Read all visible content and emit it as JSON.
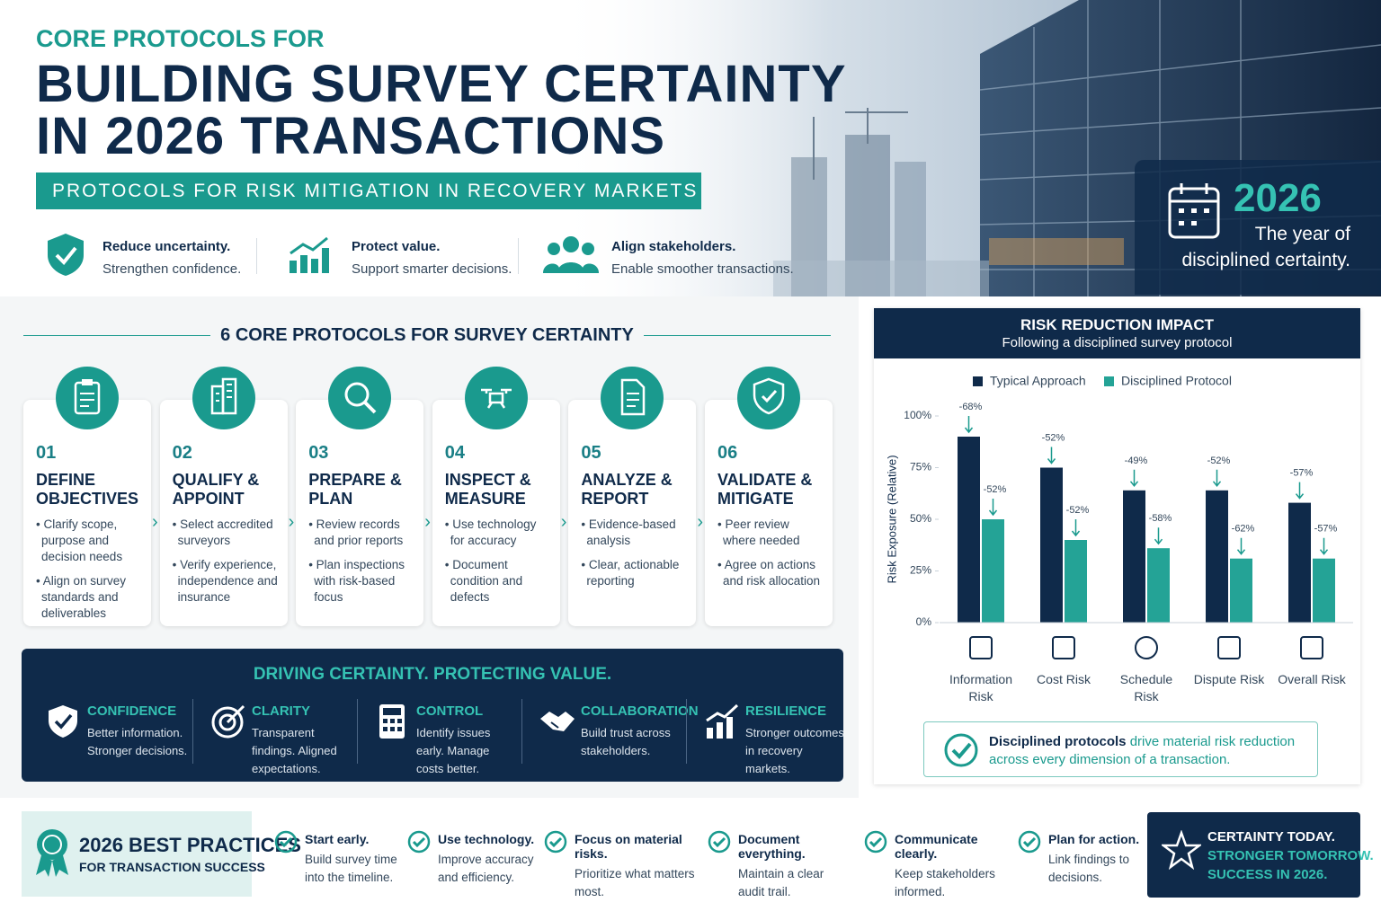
{
  "header": {
    "kicker": "CORE PROTOCOLS FOR",
    "title_lines": [
      "BUILDING SURVEY CERTAINTY",
      "IN 2026 TRANSACTIONS"
    ],
    "subtitle": "PROTOCOLS FOR RISK MITIGATION IN RECOVERY MARKETS"
  },
  "benefits": [
    {
      "title": "Reduce uncertainty.",
      "text": "Strengthen confidence."
    },
    {
      "title": "Protect value.",
      "text": "Support smarter decisions."
    },
    {
      "title": "Align stakeholders.",
      "text": "Enable smoother transactions."
    }
  ],
  "year_badge": {
    "year": "2026",
    "text": "The year of disciplined certainty."
  },
  "protocols": {
    "title": "6 CORE PROTOCOLS FOR SURVEY CERTAINTY",
    "steps": [
      {
        "number": "01",
        "title": "DEFINE OBJECTIVES",
        "bullets": [
          "Clarify scope, purpose and decision needs",
          "Align on survey standards and deliverables"
        ]
      },
      {
        "number": "02",
        "title": "QUALIFY & APPOINT",
        "bullets": [
          "Select accredited surveyors",
          "Verify experience, independence and insurance"
        ]
      },
      {
        "number": "03",
        "title": "PREPARE & PLAN",
        "bullets": [
          "Review records and prior reports",
          "Plan inspections with risk-based focus"
        ]
      },
      {
        "number": "04",
        "title": "INSPECT & MEASURE",
        "bullets": [
          "Use technology for accuracy",
          "Document condition and defects"
        ]
      },
      {
        "number": "05",
        "title": "ANALYZE & REPORT",
        "bullets": [
          "Evidence-based analysis",
          "Clear, actionable reporting"
        ]
      },
      {
        "number": "06",
        "title": "VALIDATE & MITIGATE",
        "bullets": [
          "Peer review where needed",
          "Agree on actions and risk allocation"
        ]
      }
    ]
  },
  "pillars": {
    "title": "DRIVING CERTAINTY. PROTECTING VALUE.",
    "items": [
      {
        "title": "CONFIDENCE",
        "text": "Better information. Stronger decisions."
      },
      {
        "title": "CLARITY",
        "text": "Transparent findings. Aligned expectations."
      },
      {
        "title": "CONTROL",
        "text": "Identify issues early. Manage costs better."
      },
      {
        "title": "COLLABORATION",
        "text": "Build trust across stakeholders."
      },
      {
        "title": "RESILIENCE",
        "text": "Stronger outcomes in recovery markets."
      }
    ]
  },
  "chart_data": {
    "type": "bar",
    "title": "RISK REDUCTION IMPACT",
    "subtitle": "Following a disciplined survey protocol",
    "y_label": "Risk Exposure (Relative)",
    "categories": [
      "Information Risk",
      "Cost Risk",
      "Schedule Risk",
      "Dispute Risk",
      "Overall Risk"
    ],
    "series": [
      {
        "name": "Typical Approach",
        "color": "#0f2a4a",
        "values": [
          90,
          75,
          64,
          64,
          58
        ],
        "change_labels": [
          "-68%",
          "-52%",
          "-49%",
          "-52%",
          "-57%"
        ]
      },
      {
        "name": "Disciplined Protocol",
        "color": "#24a396",
        "values": [
          50,
          40,
          36,
          31,
          31
        ],
        "change_labels": [
          "-52%",
          "-52%",
          "-58%",
          "-62%",
          "-57%"
        ]
      }
    ],
    "ylim": [
      0,
      100
    ],
    "yticks": [
      {
        "value": 0,
        "label": "0%"
      },
      {
        "value": 25,
        "label": "25%"
      },
      {
        "value": 50,
        "label": "50%"
      },
      {
        "value": 75,
        "label": "75%"
      },
      {
        "value": 100,
        "label": "100%"
      }
    ],
    "legend": "top"
  },
  "callout": {
    "bold": "Disciplined protocols",
    "text": "drive material risk reduction across every dimension of a transaction."
  },
  "best_practices": {
    "title": "2026 BEST PRACTICES",
    "subtitle": "FOR TRANSACTION SUCCESS",
    "tips": [
      {
        "title": "Start early.",
        "text": "Build survey time into the timeline."
      },
      {
        "title": "Use technology.",
        "text": "Improve accuracy and efficiency."
      },
      {
        "title": "Focus on material risks.",
        "text": "Prioritize what matters most."
      },
      {
        "title": "Document everything.",
        "text": "Maintain a clear audit trail."
      },
      {
        "title": "Communicate clearly.",
        "text": "Keep stakeholders informed."
      },
      {
        "title": "Plan for action.",
        "text": "Link findings to decisions."
      }
    ]
  },
  "closing": [
    "CERTAINTY TODAY.",
    "STRONGER TOMORROW.",
    "SUCCESS IN 2026."
  ]
}
